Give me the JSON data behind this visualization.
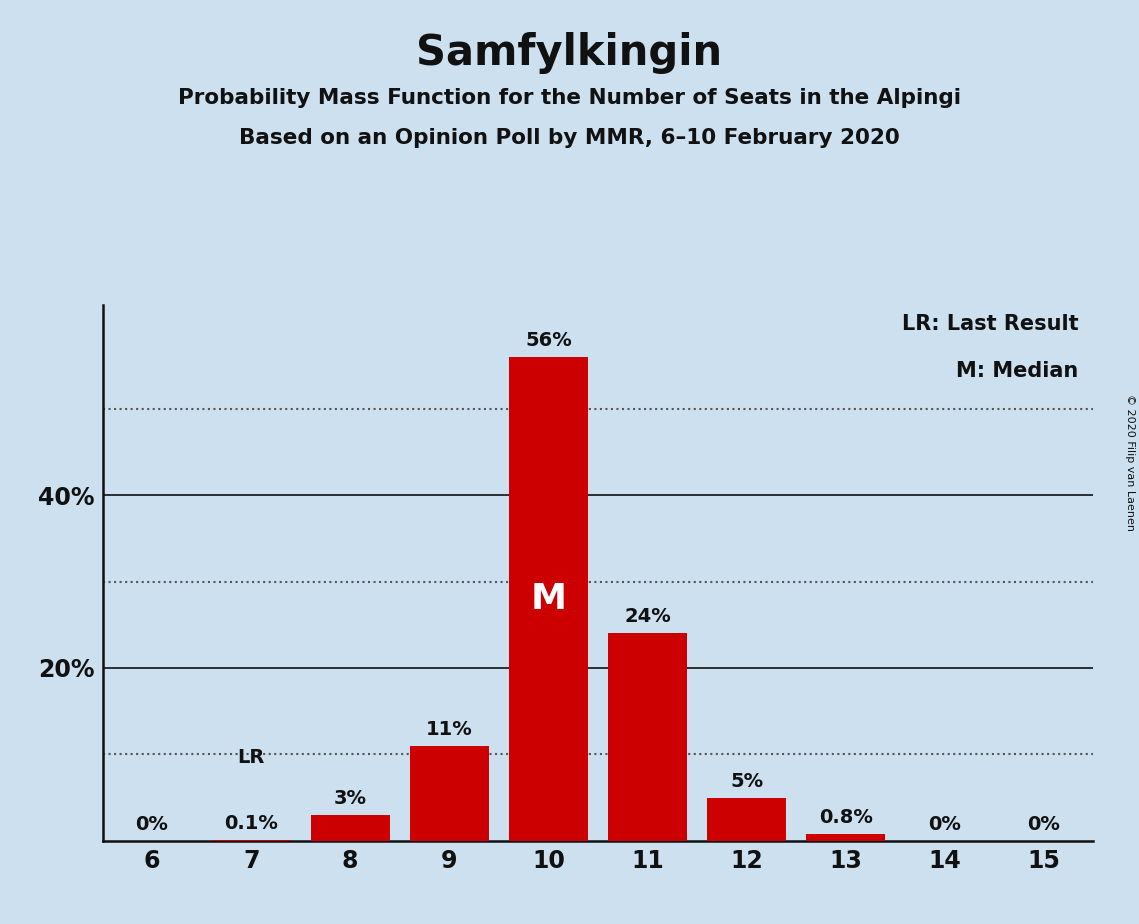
{
  "title": "Samfylkingin",
  "subtitle1": "Probability Mass Function for the Number of Seats in the Alpingi",
  "subtitle2": "Based on an Opinion Poll by MMR, 6–10 February 2020",
  "copyright": "© 2020 Filip van Laenen",
  "seats": [
    6,
    7,
    8,
    9,
    10,
    11,
    12,
    13,
    14,
    15
  ],
  "probabilities": [
    0.0,
    0.1,
    3.0,
    11.0,
    56.0,
    24.0,
    5.0,
    0.8,
    0.0,
    0.0
  ],
  "labels": [
    "0%",
    "0.1%",
    "3%",
    "11%",
    "56%",
    "24%",
    "5%",
    "0.8%",
    "0%",
    "0%"
  ],
  "bar_color": "#cc0000",
  "background_color": "#cce0f0",
  "text_color": "#111111",
  "median_seat": 10,
  "lr_seat": 7,
  "yticks": [
    20,
    40
  ],
  "ytick_labels": [
    "20%",
    "40%"
  ],
  "solid_lines": [
    20,
    40
  ],
  "dotted_lines": [
    10,
    30,
    50
  ],
  "ylim_max": 62,
  "legend_lr": "LR: Last Result",
  "legend_m": "M: Median",
  "median_label": "M",
  "lr_label": "LR"
}
